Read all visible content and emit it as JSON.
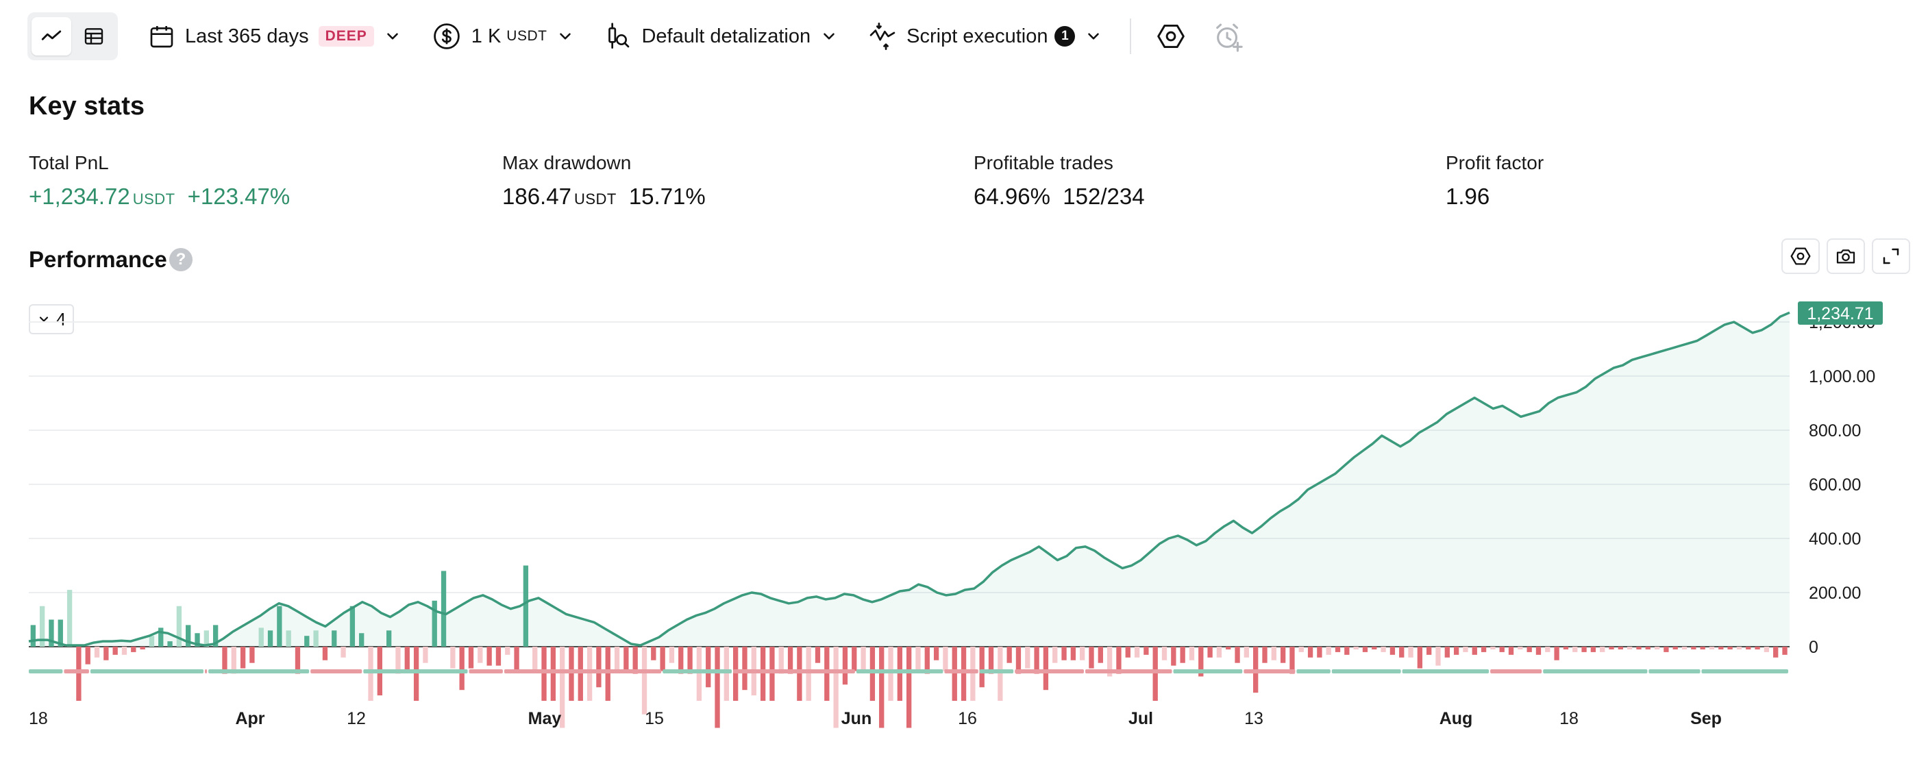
{
  "toolbar": {
    "period_label": "Last 365 days",
    "period_badge": "DEEP",
    "capital_value": "1 K",
    "capital_unit": "USDT",
    "detalization_label": "Default detalization",
    "script_label": "Script execution",
    "script_count": "1"
  },
  "key_stats": {
    "title": "Key stats",
    "total_pnl": {
      "label": "Total PnL",
      "value": "+1,234.72",
      "unit": "USDT",
      "percent": "+123.47%"
    },
    "max_drawdown": {
      "label": "Max drawdown",
      "value": "186.47",
      "unit": "USDT",
      "percent": "15.71%"
    },
    "profitable_trades": {
      "label": "Profitable trades",
      "percent": "64.96%",
      "ratio": "152/234"
    },
    "profit_factor": {
      "label": "Profit factor",
      "value": "1.96"
    }
  },
  "performance": {
    "title": "Performance",
    "help": "?",
    "series_count": "4",
    "current_value_label": "1,234.71"
  },
  "colors": {
    "accent_green": "#2f8f6a",
    "line_green": "#3a9a7b",
    "bar_green": "#4fac8e",
    "bar_green_light": "#b5e0cf",
    "bar_red": "#e06a71",
    "bar_red_light": "#f5c9cc",
    "badge_pink": "#c8325a"
  },
  "icons": [
    "line-chart-icon",
    "table-icon",
    "calendar-icon",
    "dollar-coin-icon",
    "candle-search-icon",
    "script-icon",
    "hexagon-settings-icon",
    "alarm-add-icon",
    "camera-icon",
    "expand-icon"
  ],
  "chart_data": {
    "type": "line",
    "x_tick_labels": [
      "18",
      "Apr",
      "12",
      "May",
      "15",
      "Jun",
      "16",
      "Jul",
      "13",
      "Aug",
      "18",
      "Sep"
    ],
    "bold_x_ticks": [
      "Apr",
      "May",
      "Jun",
      "Jul",
      "Aug",
      "Sep"
    ],
    "y_tick_labels": [
      "0",
      "200.00",
      "400.00",
      "600.00",
      "800.00",
      "1,000.00",
      "1,200.00"
    ],
    "y_ticks": [
      0,
      200,
      400,
      600,
      800,
      1000,
      1200
    ],
    "ylim": [
      -200,
      1200
    ],
    "last_value": 1234.71,
    "series": [
      {
        "name": "",
        "values": [
          20,
          25,
          25,
          15,
          5,
          5,
          5,
          15,
          20,
          20,
          22,
          20,
          30,
          40,
          55,
          50,
          35,
          20,
          10,
          5,
          10,
          30,
          55,
          75,
          95,
          115,
          140,
          160,
          150,
          130,
          110,
          90,
          75,
          100,
          125,
          145,
          165,
          150,
          125,
          110,
          130,
          155,
          165,
          150,
          130,
          120,
          140,
          160,
          180,
          190,
          175,
          155,
          140,
          150,
          170,
          180,
          160,
          140,
          120,
          110,
          100,
          90,
          70,
          50,
          30,
          10,
          5,
          20,
          35,
          60,
          80,
          100,
          115,
          125,
          140,
          160,
          175,
          190,
          200,
          195,
          180,
          170,
          160,
          165,
          180,
          185,
          175,
          180,
          195,
          190,
          175,
          165,
          175,
          190,
          205,
          210,
          230,
          220,
          200,
          190,
          195,
          210,
          215,
          240,
          275,
          300,
          320,
          335,
          350,
          370,
          345,
          320,
          335,
          365,
          370,
          355,
          330,
          310,
          290,
          300,
          320,
          350,
          380,
          400,
          410,
          395,
          375,
          390,
          420,
          445,
          465,
          440,
          420,
          445,
          475,
          500,
          520,
          545,
          580,
          600,
          620,
          640,
          670,
          700,
          725,
          750,
          780,
          760,
          740,
          760,
          790,
          810,
          830,
          860,
          880,
          900,
          920,
          900,
          880,
          890,
          870,
          850,
          860,
          870,
          900,
          920,
          930,
          940,
          960,
          990,
          1010,
          1030,
          1040,
          1060,
          1070,
          1080,
          1090,
          1100,
          1110,
          1120,
          1130,
          1150,
          1170,
          1190,
          1200,
          1180,
          1160,
          1170,
          1190,
          1220,
          1234.71
        ]
      }
    ],
    "bars": [
      {
        "name": "",
        "values": [
          80,
          150,
          100,
          100,
          210,
          -200,
          -65,
          -40,
          -50,
          -30,
          -30,
          -20,
          -10,
          40,
          70,
          20,
          150,
          80,
          50,
          60,
          80,
          -100,
          -100,
          -80,
          -60,
          70,
          60,
          150,
          60,
          -100,
          40,
          60,
          -50,
          60,
          -40,
          150,
          50,
          -200,
          -180,
          60,
          -100,
          -90,
          -200,
          -60,
          170,
          280,
          -80,
          -160,
          -80,
          -60,
          -70,
          -70,
          -30,
          -90,
          300,
          -90,
          -200,
          -200,
          -300,
          -200,
          -200,
          -200,
          -150,
          -200,
          -90,
          -90,
          -100,
          -250,
          -50,
          -90,
          -60,
          -100,
          -100,
          -200,
          -150,
          -300,
          -200,
          -200,
          -160,
          -180,
          -200,
          -200,
          -100,
          -100,
          -200,
          -200,
          -60,
          -200,
          -300,
          -140,
          -90,
          -90,
          -200,
          -300,
          -200,
          -200,
          -300,
          -90,
          -100,
          -50,
          -90,
          -200,
          -200,
          -200,
          -150,
          -100,
          -200,
          -60,
          -100,
          -80,
          -100,
          -160,
          -60,
          -50,
          -50,
          -50,
          -80,
          -60,
          -110,
          -100,
          -40,
          -40,
          -30,
          -200,
          -50,
          -70,
          -60,
          -50,
          -110,
          -40,
          -40,
          -10,
          -60,
          -40,
          -170,
          -60,
          -50,
          -60,
          -100,
          -20,
          -40,
          -40,
          -30,
          -20,
          -30,
          -10,
          -20,
          -10,
          -20,
          -30,
          -40,
          -40,
          -80,
          -30,
          -70,
          -40,
          -30,
          -20,
          -30,
          -20,
          -10,
          -20,
          -30,
          -10,
          -20,
          -30,
          -20,
          -50,
          -10,
          -20,
          -20,
          -20,
          -20,
          -10,
          -10,
          -10,
          -10,
          -10,
          -10,
          -20,
          -10,
          -10,
          -10,
          -10,
          -10,
          -10,
          -10,
          -10,
          -10,
          -10,
          -20,
          -40,
          -30
        ]
      }
    ]
  }
}
